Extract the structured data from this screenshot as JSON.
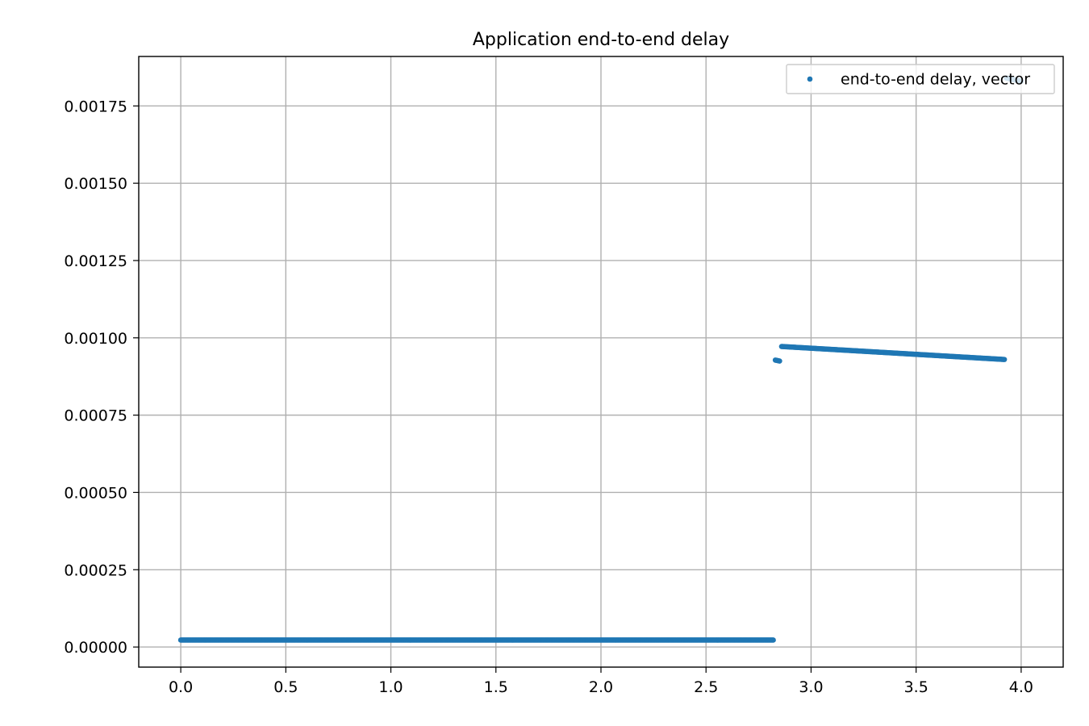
{
  "chart_data": {
    "type": "scatter",
    "title": "Application end-to-end delay",
    "xlabel": "",
    "ylabel": "",
    "xlim": [
      -0.2,
      4.2
    ],
    "ylim": [
      -6.5e-05,
      0.00191
    ],
    "xticks": [
      0.0,
      0.5,
      1.0,
      1.5,
      2.0,
      2.5,
      3.0,
      3.5,
      4.0
    ],
    "xtick_labels": [
      "0.0",
      "0.5",
      "1.0",
      "1.5",
      "2.0",
      "2.5",
      "3.0",
      "3.5",
      "4.0"
    ],
    "yticks": [
      0.0,
      0.00025,
      0.0005,
      0.00075,
      0.001,
      0.00125,
      0.0015,
      0.00175
    ],
    "ytick_labels": [
      "0.00000",
      "0.00025",
      "0.00050",
      "0.00075",
      "0.00100",
      "0.00125",
      "0.00150",
      "0.00175"
    ],
    "grid": true,
    "legend_position": "top-right",
    "series": [
      {
        "name": "end-to-end delay, vector",
        "color": "#1f77b4",
        "segments": [
          {
            "x_start": 0.0,
            "x_end": 2.82,
            "y_start": 2.25e-05,
            "y_end": 2.25e-05
          },
          {
            "x_start": 2.83,
            "x_end": 2.85,
            "y_start": 0.000928,
            "y_end": 0.000925
          },
          {
            "x_start": 2.86,
            "x_end": 3.92,
            "y_start": 0.000972,
            "y_end": 0.00093
          },
          {
            "x_start": 3.93,
            "x_end": 4.0,
            "y_start": 0.00184,
            "y_end": 0.00183
          }
        ]
      }
    ]
  }
}
